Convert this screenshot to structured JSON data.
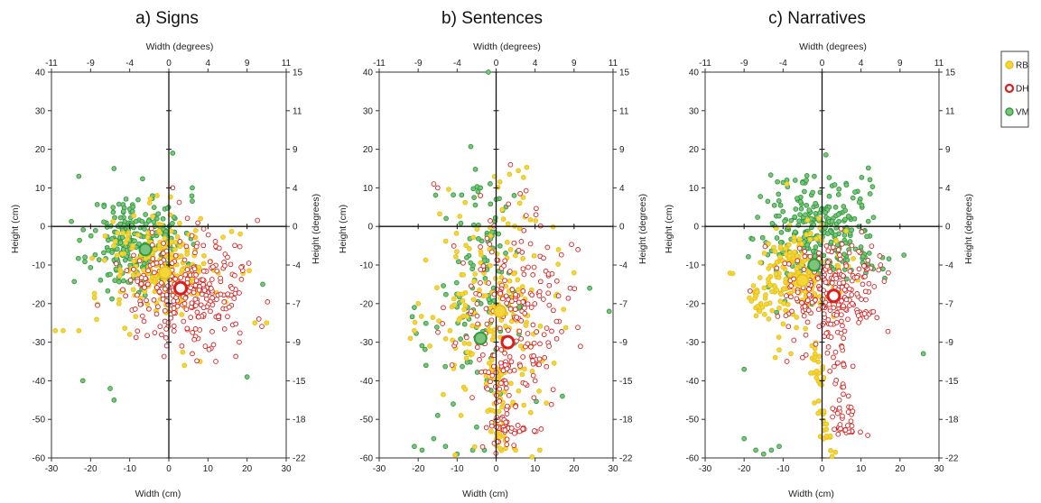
{
  "legend": {
    "entries": [
      {
        "label": "RB",
        "color": "#e8c21a",
        "fill": "#f2d63a",
        "style": "filled"
      },
      {
        "label": "DH",
        "color": "#d81e1e",
        "fill": "#ffffff",
        "style": "hollow"
      },
      {
        "label": "VM",
        "color": "#2e9a3a",
        "fill": "#7cc47e",
        "style": "filled"
      }
    ]
  },
  "axes": {
    "xlabel_bottom": "Width (cm)",
    "xlabel_top": "Width (degrees)",
    "ylabel_left": "Height (cm)",
    "ylabel_right": "Height (degrees)",
    "xlim": [
      -30,
      30
    ],
    "ylim": [
      -60,
      40
    ],
    "x_ticks": [
      -30,
      -20,
      -10,
      0,
      10,
      20,
      30
    ],
    "y_ticks": [
      -60,
      -50,
      -40,
      -30,
      -20,
      -10,
      0,
      10,
      20,
      30,
      40
    ],
    "x_deg_ticks": [
      "-11",
      "-9",
      "-4",
      "0",
      "4",
      "9",
      "11"
    ],
    "y_deg_ticks": [
      "15",
      "11",
      "9",
      "4",
      "0",
      "-4",
      "-7",
      "-9",
      "-15",
      "-18",
      "-22"
    ]
  },
  "chart_data": [
    {
      "type": "scatter",
      "title": "a) Signs",
      "means": {
        "RB": [
          -1,
          -12
        ],
        "DH": [
          3,
          -16
        ],
        "VM": [
          -6,
          -6
        ]
      },
      "clouds": [
        {
          "series": "VM",
          "n": 260,
          "cx": -8,
          "cy": -4,
          "sx": 6,
          "sy": 6,
          "seed": 11
        },
        {
          "series": "RB",
          "n": 230,
          "cx": -1,
          "cy": -11,
          "sx": 7,
          "sy": 7,
          "seed": 12
        },
        {
          "series": "DH",
          "n": 280,
          "cx": 5,
          "cy": -17,
          "sx": 8,
          "sy": 7,
          "seed": 13
        }
      ],
      "outliers": {
        "VM": [
          [
            -31,
            3
          ],
          [
            -23,
            13
          ],
          [
            -14,
            15
          ],
          [
            -22,
            -40
          ],
          [
            -15,
            -42
          ],
          [
            -14,
            -45
          ],
          [
            6,
            10
          ],
          [
            24,
            -15
          ],
          [
            20,
            -39
          ],
          [
            1,
            19
          ]
        ],
        "RB": [
          [
            -29,
            -27
          ],
          [
            -27,
            -27
          ],
          [
            -23,
            -27
          ],
          [
            -10,
            -28
          ],
          [
            8,
            -35
          ],
          [
            22,
            -25
          ],
          [
            25,
            -25
          ],
          [
            -3,
            8
          ],
          [
            4,
            -36
          ]
        ],
        "DH": [
          [
            23,
            -24
          ],
          [
            12,
            -35
          ],
          [
            18,
            -30
          ],
          [
            1,
            10
          ],
          [
            15,
            -8
          ],
          [
            6,
            -33
          ]
        ]
      }
    },
    {
      "type": "scatter",
      "title": "b) Sentences",
      "means": {
        "RB": [
          1,
          -22
        ],
        "DH": [
          3,
          -30
        ],
        "VM": [
          -4,
          -29
        ]
      },
      "clouds": [
        {
          "series": "VM",
          "n": 130,
          "cx": -3,
          "cy": -18,
          "sx": 6,
          "sy": 15,
          "seed": 21
        },
        {
          "series": "RB",
          "n": 200,
          "cx": 0,
          "cy": -20,
          "sx": 7,
          "sy": 14,
          "seed": 22
        },
        {
          "series": "DH",
          "n": 200,
          "cx": 4,
          "cy": -24,
          "sx": 7,
          "sy": 13,
          "seed": 23
        }
      ],
      "lines": [
        {
          "series": "RB",
          "x0": 0,
          "y0": -35,
          "x1": 1,
          "y1": -59,
          "n": 55,
          "jitter": 1.2,
          "seed": 24
        },
        {
          "series": "DH",
          "x0": 2,
          "y0": -32,
          "x1": 2,
          "y1": -58,
          "n": 45,
          "jitter": 1.5,
          "seed": 25
        },
        {
          "series": "DH",
          "x0": -1,
          "y0": -52,
          "x1": 11,
          "y1": -53,
          "n": 25,
          "jitter": 0.8,
          "seed": 26
        }
      ],
      "outliers": {
        "VM": [
          [
            -2,
            40
          ],
          [
            -21,
            -57
          ],
          [
            -19,
            -58
          ],
          [
            -16,
            -55
          ],
          [
            -13,
            -57
          ],
          [
            -10,
            -59
          ],
          [
            -6,
            -58
          ],
          [
            -3,
            -58
          ],
          [
            -5,
            -52
          ],
          [
            -15,
            -49
          ],
          [
            -11,
            -46
          ],
          [
            -21,
            -21
          ],
          [
            -18,
            -36
          ],
          [
            17,
            -44
          ],
          [
            29,
            -22
          ],
          [
            24,
            -16
          ],
          [
            -4,
            10
          ],
          [
            0,
            7
          ]
        ],
        "RB": [
          [
            -22,
            -29
          ],
          [
            -20,
            -20
          ],
          [
            -21,
            -27
          ],
          [
            -17,
            -31
          ],
          [
            20,
            -12
          ],
          [
            16,
            -6
          ],
          [
            -9,
            -49
          ],
          [
            5,
            -58
          ]
        ],
        "DH": [
          [
            -16,
            11
          ],
          [
            -15,
            10
          ],
          [
            16,
            -18
          ],
          [
            19,
            -16
          ],
          [
            21,
            -6
          ],
          [
            -4,
            8
          ],
          [
            10,
            -40
          ]
        ]
      }
    },
    {
      "type": "scatter",
      "title": "c) Narratives",
      "means": {
        "RB": [
          -5,
          -14
        ],
        "DH": [
          3,
          -18
        ],
        "VM": [
          -2,
          -10
        ]
      },
      "clouds": [
        {
          "series": "VM",
          "n": 300,
          "cx": -1,
          "cy": -2,
          "sx": 8,
          "sy": 7,
          "seed": 31
        },
        {
          "series": "RB",
          "n": 190,
          "cx": -7,
          "cy": -12,
          "sx": 6,
          "sy": 6,
          "seed": 32
        },
        {
          "series": "DH",
          "n": 230,
          "cx": 3,
          "cy": -17,
          "sx": 6,
          "sy": 6,
          "seed": 33
        }
      ],
      "lines": [
        {
          "series": "RB",
          "x0": -2,
          "y0": -30,
          "x1": 2,
          "y1": -59,
          "n": 45,
          "jitter": 1.0,
          "seed": 34
        },
        {
          "series": "DH",
          "x0": 2,
          "y0": -26,
          "x1": 6,
          "y1": -52,
          "n": 40,
          "jitter": 1.8,
          "seed": 35
        },
        {
          "series": "DH",
          "x0": 3,
          "y0": -52,
          "x1": 11,
          "y1": -54,
          "n": 18,
          "jitter": 0.8,
          "seed": 36
        },
        {
          "series": "RB",
          "x0": -18,
          "y0": -16,
          "x1": -15,
          "y1": -24,
          "n": 20,
          "jitter": 1.0,
          "seed": 37
        }
      ],
      "outliers": {
        "VM": [
          [
            -17,
            -58
          ],
          [
            -15,
            -59
          ],
          [
            -13,
            -58
          ],
          [
            -11,
            -57
          ],
          [
            -20,
            -37
          ],
          [
            26,
            -33
          ],
          [
            -20,
            -55
          ],
          [
            -2,
            13
          ],
          [
            -9,
            12
          ]
        ],
        "RB": [
          [
            -11,
            -32
          ],
          [
            -12,
            -34
          ],
          [
            -8,
            -33
          ],
          [
            -6,
            -12
          ],
          [
            -9,
            11
          ]
        ],
        "DH": [
          [
            -9,
            -35
          ],
          [
            -5,
            -34
          ],
          [
            11,
            -13
          ],
          [
            15,
            -10
          ],
          [
            17,
            -12
          ]
        ]
      }
    }
  ]
}
